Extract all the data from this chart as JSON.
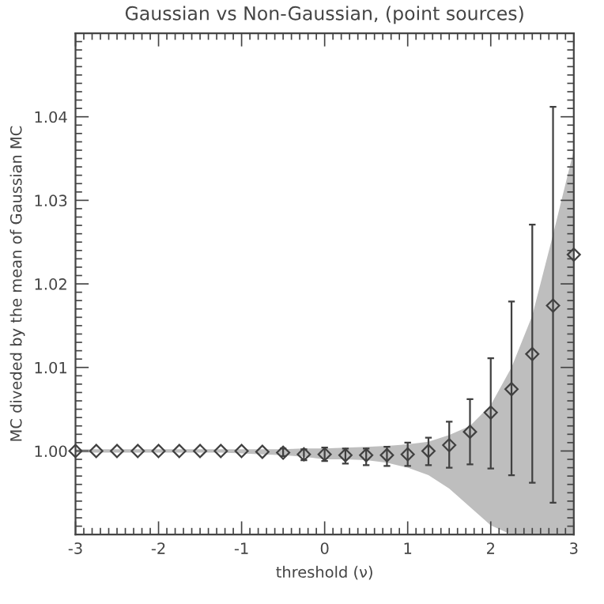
{
  "chart_data": {
    "type": "scatter",
    "title": "Gaussian vs Non-Gaussian, (point sources)",
    "xlabel": "threshold (ν)",
    "ylabel": "MC diveded by the mean of Gaussian MC",
    "x": [
      -3,
      -2.75,
      -2.5,
      -2.25,
      -2,
      -1.75,
      -1.5,
      -1.25,
      -1,
      -0.75,
      -0.5,
      -0.25,
      0,
      0.25,
      0.5,
      0.75,
      1,
      1.25,
      1.5,
      1.75,
      2,
      2.25,
      2.5,
      2.75,
      3
    ],
    "series": [
      {
        "type": "area",
        "color": "#bebebe",
        "values": [
          null,
          null,
          null,
          null,
          null,
          null,
          null,
          null,
          null,
          null,
          null,
          null,
          null,
          null,
          null,
          null,
          null,
          null,
          null,
          null,
          null,
          null,
          null,
          null,
          null
        ],
        "lower": [
          0.9998,
          0.9998,
          0.9998,
          0.9998,
          0.9998,
          0.9998,
          0.9998,
          0.9998,
          0.9997,
          0.9996,
          0.9995,
          0.9993,
          0.999,
          0.999,
          0.9989,
          0.9986,
          0.998,
          0.9971,
          0.9955,
          0.9933,
          0.9911,
          0.99,
          0.99,
          0.99,
          0.99
        ],
        "upper": [
          1.0002,
          1.0002,
          1.0002,
          1.0002,
          1.0002,
          1.0002,
          1.0002,
          1.0002,
          1.0002,
          1.0002,
          1.0002,
          1.0003,
          1.0003,
          1.0004,
          1.0005,
          1.0006,
          1.0008,
          1.0011,
          1.0019,
          1.003,
          1.0055,
          1.01,
          1.0162,
          1.0259,
          1.036
        ]
      },
      {
        "color": "#404040",
        "values": [
          1.0,
          1.0,
          1.0,
          1.0,
          1.0,
          1.0,
          1.0,
          1.0,
          1.0,
          0.9999,
          0.9998,
          0.9996,
          0.9996,
          0.9995,
          0.9995,
          0.9995,
          0.9996,
          1.0,
          1.0007,
          1.0023,
          1.0046,
          1.0074,
          1.0116,
          1.0174,
          1.0235
        ],
        "errors": [
          null,
          null,
          null,
          null,
          null,
          null,
          null,
          null,
          null,
          null,
          [
            0.9994,
            1.0003
          ],
          [
            0.9989,
            1.0002
          ],
          [
            0.9988,
            1.0004
          ],
          [
            0.9985,
            1.0003
          ],
          [
            0.9983,
            1.0003
          ],
          [
            0.9982,
            1.0005
          ],
          [
            0.9982,
            1.001
          ],
          [
            0.9983,
            1.0016
          ],
          [
            0.998,
            1.0035
          ],
          [
            0.9984,
            1.0062
          ],
          [
            0.9979,
            1.0111
          ],
          [
            0.9971,
            1.0179
          ],
          [
            0.9962,
            1.0271
          ],
          [
            0.9938,
            1.0412
          ],
          null
        ]
      }
    ],
    "marker": "diamond",
    "xlim": [
      -3,
      3
    ],
    "ylim": [
      0.99,
      1.05
    ],
    "xticks": [
      -3,
      -2,
      -1,
      0,
      1,
      2,
      3
    ],
    "yticks": [
      {
        "value": 1.0,
        "label": "1.00"
      },
      {
        "value": 1.01,
        "label": "1.01"
      },
      {
        "value": 1.02,
        "label": "1.02"
      },
      {
        "value": 1.03,
        "label": "1.03"
      },
      {
        "value": 1.04,
        "label": "1.04"
      }
    ],
    "grid": false,
    "legend": false
  }
}
